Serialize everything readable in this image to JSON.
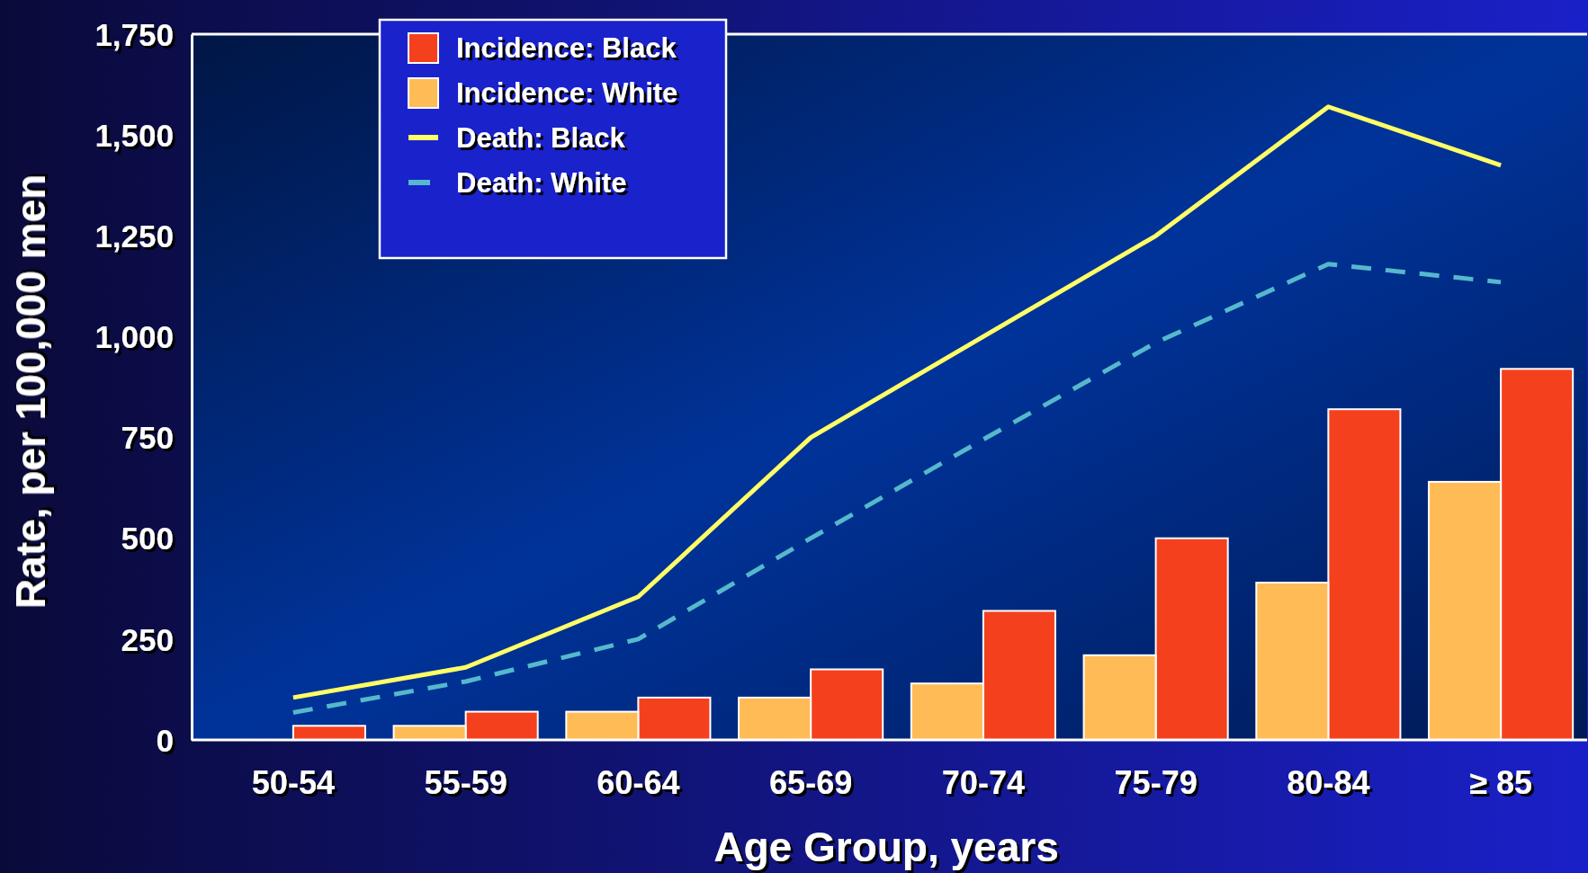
{
  "chart_data": {
    "type": "bar",
    "xlabel": "Age Group, years",
    "ylabel": "Rate, per 100,000 men",
    "categories": [
      "50-54",
      "55-59",
      "60-64",
      "65-69",
      "70-74",
      "75-79",
      "80-84",
      "≥ 85"
    ],
    "series": [
      {
        "name": "Incidence: Black",
        "color": "#f5401e",
        "values": [
          35,
          70,
          105,
          175,
          320,
          500,
          820,
          920
        ]
      },
      {
        "name": "Incidence: White",
        "color": "#ffbb55",
        "values": [
          null,
          35,
          70,
          105,
          140,
          210,
          390,
          640
        ]
      },
      {
        "name": "Death: Black",
        "type": "line",
        "color": "#ffff66",
        "line_style": "solid",
        "values": [
          105,
          180,
          355,
          750,
          1000,
          1250,
          1570,
          1425
        ]
      },
      {
        "name": "Death: White",
        "type": "line",
        "color": "#55b8cc",
        "line_style": "dashed",
        "values": [
          68,
          145,
          250,
          500,
          745,
          985,
          1180,
          1135
        ]
      }
    ],
    "ylim": [
      0,
      1750
    ],
    "yticks": [
      0,
      250,
      500,
      750,
      {
        "value": 1000,
        "label": "1,000"
      },
      {
        "value": 1250,
        "label": "1,250"
      },
      {
        "value": 1500,
        "label": "1,500"
      },
      {
        "value": 1750,
        "label": "1,750"
      }
    ],
    "legend": "top left",
    "marker": "none"
  }
}
